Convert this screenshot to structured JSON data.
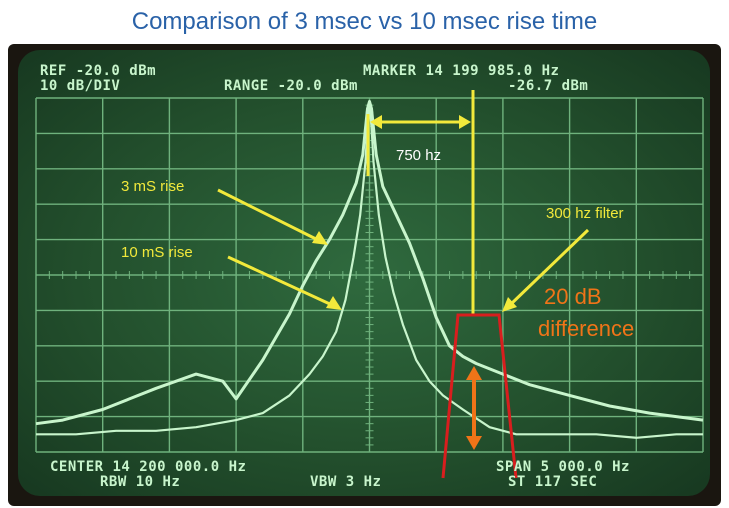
{
  "slide": {
    "title": "Comparison of 3 msec vs 10 msec rise time"
  },
  "readouts": {
    "ref": "REF -20.0 dBm",
    "scale": "10 dB/DIV",
    "range": "RANGE -20.0 dBm",
    "marker": "MARKER 14 199 985.0 Hz",
    "marker_level": "-26.7 dBm",
    "center": "CENTER 14 200 000.0 Hz",
    "rbw": "RBW 10 Hz",
    "vbw": "VBW 3 Hz",
    "span": "SPAN 5 000.0 Hz",
    "sweep": "ST 117 SEC"
  },
  "annotations": {
    "spacing": "750 hz",
    "rise_3ms": "3 mS rise",
    "rise_10ms": "10 mS rise",
    "filter": "300 hz filter",
    "diff_line1": "20 dB",
    "diff_line2": "difference"
  },
  "colors": {
    "trace": "#c8f5cc",
    "grid": "#6fb27d",
    "annotation_yellow": "#f2e93b",
    "filter_red": "#d81e1e",
    "difference_orange": "#f07418",
    "title_blue": "#2a62a8"
  },
  "chart_data": {
    "type": "line",
    "x_unit": "Hz offset from 14 200 000.0 Hz",
    "y_unit": "dB",
    "xlim": [
      -2500,
      2500
    ],
    "ylim": [
      -100,
      0
    ],
    "grid": true,
    "series": [
      {
        "name": "3 mS rise",
        "x": [
          -2500,
          -2300,
          -2000,
          -1800,
          -1600,
          -1300,
          -1100,
          -1000,
          -800,
          -600,
          -500,
          -400,
          -300,
          -200,
          -100,
          -50,
          -15,
          0,
          15,
          50,
          100,
          200,
          300,
          400,
          500,
          600,
          700,
          800,
          1000,
          1200,
          1500,
          1800,
          2100,
          2300,
          2500
        ],
        "y": [
          -92,
          -91,
          -88,
          -85,
          -82,
          -78,
          -80,
          -85,
          -74,
          -61,
          -53,
          -46,
          -40,
          -33,
          -24,
          -16,
          -3,
          -1,
          -3,
          -16,
          -25,
          -33,
          -41,
          -51,
          -62,
          -70,
          -73,
          -75,
          -78,
          -81,
          -84,
          -87,
          -89,
          -90,
          -91
        ]
      },
      {
        "name": "10 mS rise",
        "x": [
          -2500,
          -2200,
          -1900,
          -1600,
          -1300,
          -1000,
          -800,
          -600,
          -450,
          -350,
          -250,
          -180,
          -120,
          -70,
          -30,
          -15,
          0,
          15,
          30,
          70,
          120,
          180,
          250,
          350,
          450,
          550,
          700,
          900,
          1100,
          1400,
          1700,
          2000,
          2300,
          2500
        ],
        "y": [
          -95,
          -95,
          -94,
          -94,
          -93,
          -91,
          -89,
          -84,
          -78,
          -73,
          -66,
          -57,
          -45,
          -33,
          -18,
          -8,
          -3,
          -8,
          -18,
          -33,
          -45,
          -55,
          -64,
          -74,
          -80,
          -84,
          -88,
          -93,
          -95,
          -95,
          -95,
          -96,
          -95,
          -95
        ]
      }
    ]
  }
}
